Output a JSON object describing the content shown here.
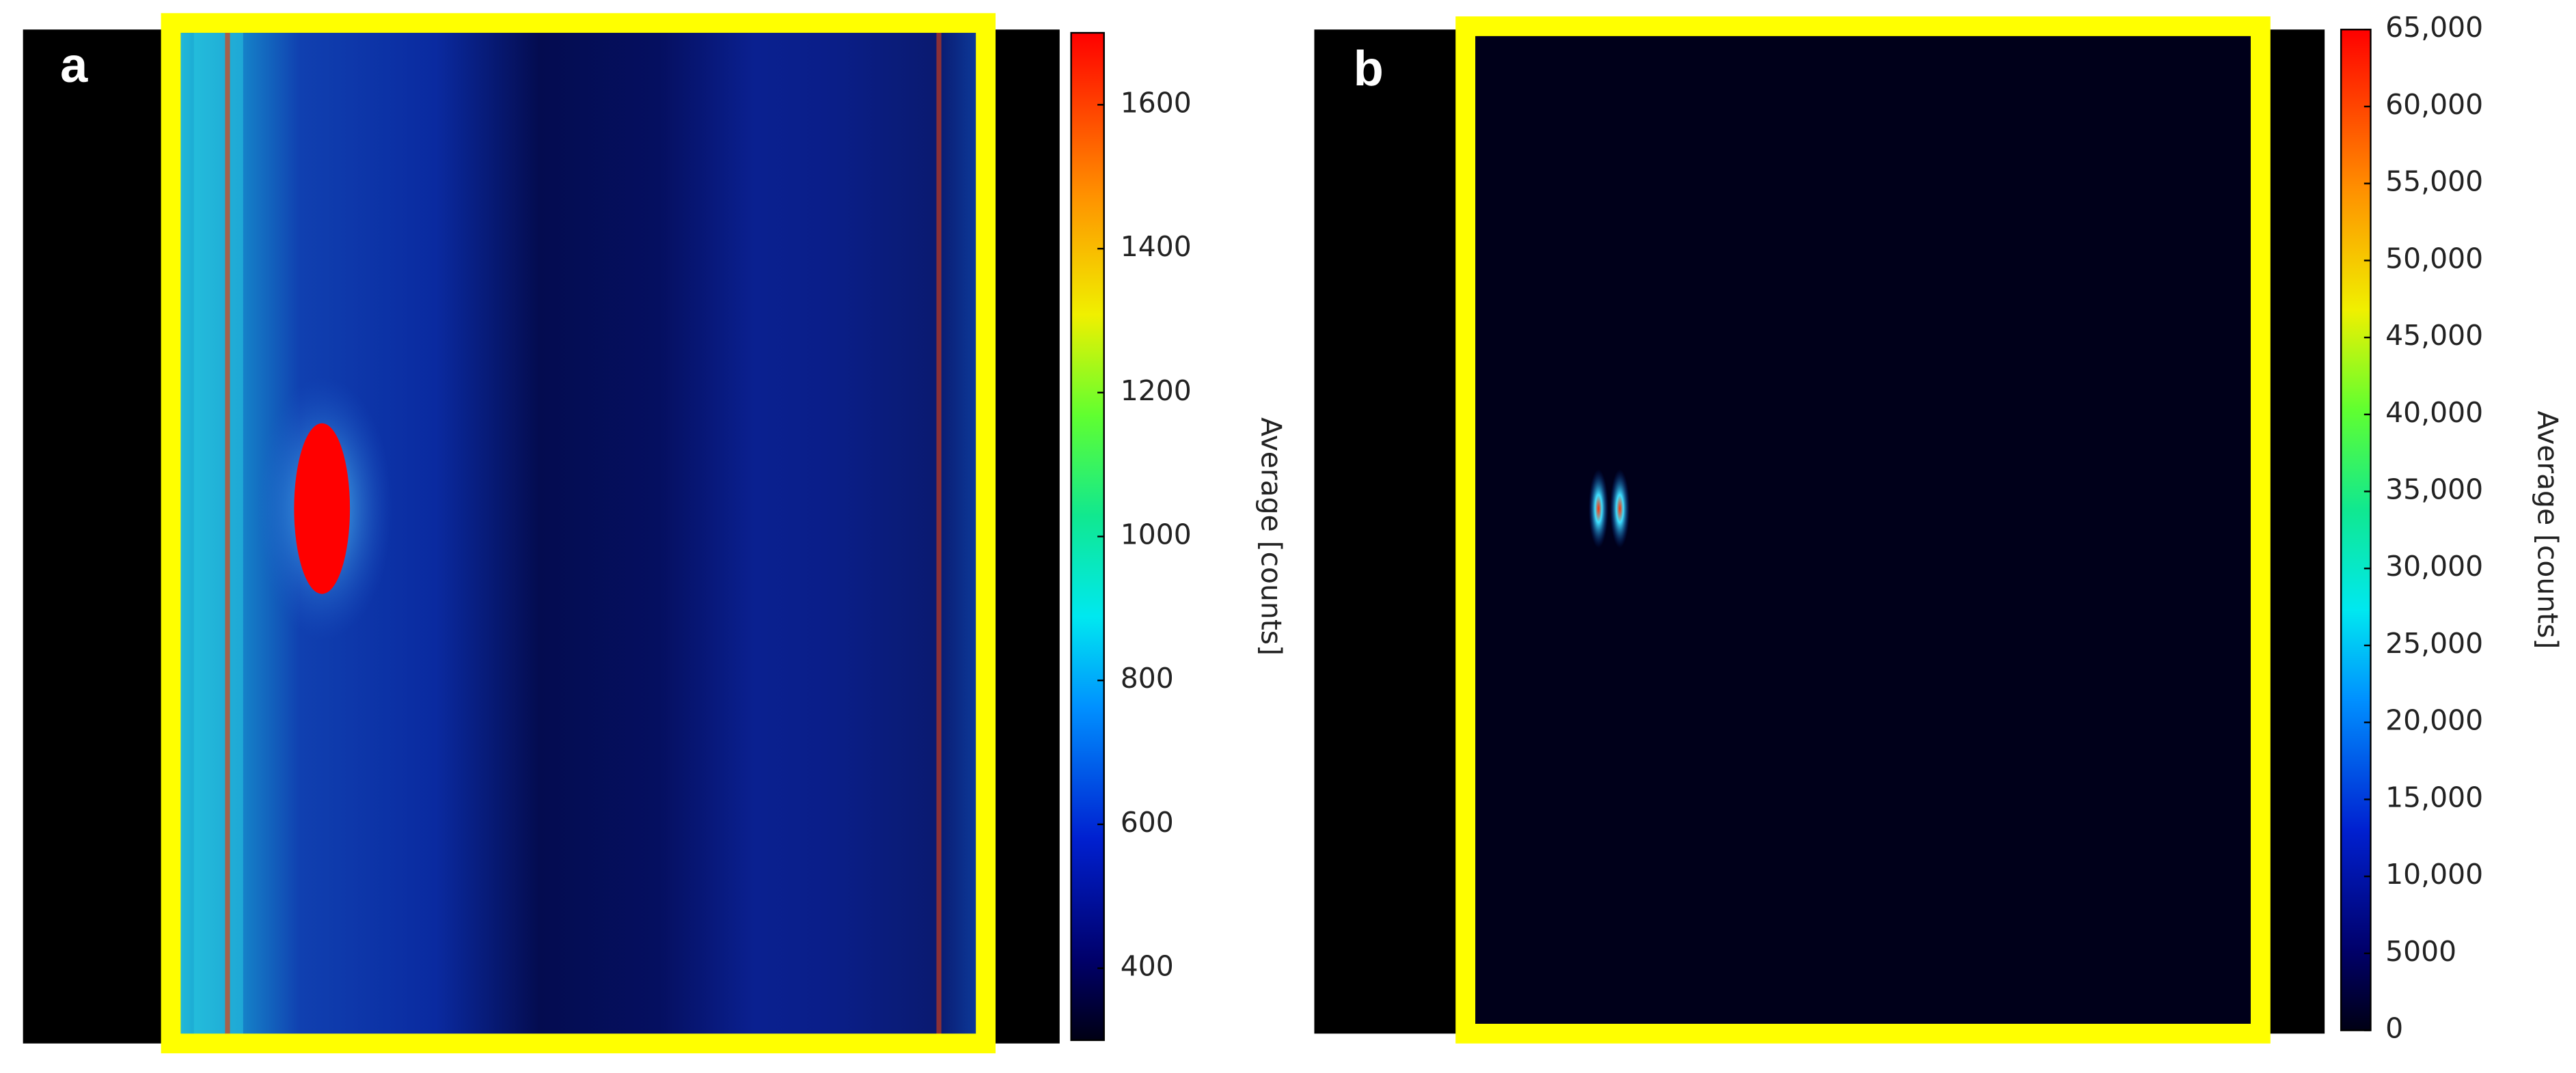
{
  "chart_data": [
    {
      "type": "heatmap",
      "panel_label": "a",
      "colorbar": {
        "label": "Average [counts]",
        "clim": [
          300,
          1700
        ],
        "ticks": [
          400,
          600,
          800,
          1000,
          1200,
          1400,
          1600
        ]
      }
    },
    {
      "type": "heatmap",
      "panel_label": "b",
      "colorbar": {
        "label": "Average [counts]",
        "clim": [
          0,
          65000
        ],
        "ticks": [
          0,
          5000,
          {
            "value": 10000,
            "label": "10,000"
          },
          {
            "value": 15000,
            "label": "15,000"
          },
          {
            "value": 20000,
            "label": "20,000"
          },
          {
            "value": 25000,
            "label": "25,000"
          },
          {
            "value": 30000,
            "label": "30,000"
          },
          {
            "value": 35000,
            "label": "35,000"
          },
          {
            "value": 40000,
            "label": "40,000"
          },
          {
            "value": 45000,
            "label": "45,000"
          },
          {
            "value": 50000,
            "label": "50,000"
          },
          {
            "value": 55000,
            "label": "55,000"
          },
          {
            "value": 60000,
            "label": "60,000"
          },
          {
            "value": 65000,
            "label": "65,000"
          }
        ]
      }
    }
  ]
}
